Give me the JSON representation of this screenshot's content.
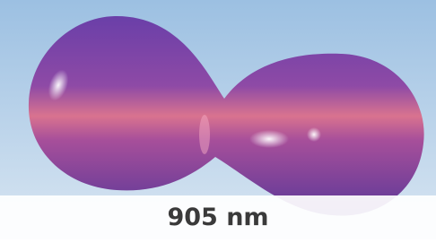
{
  "caption": "905 nm"
}
